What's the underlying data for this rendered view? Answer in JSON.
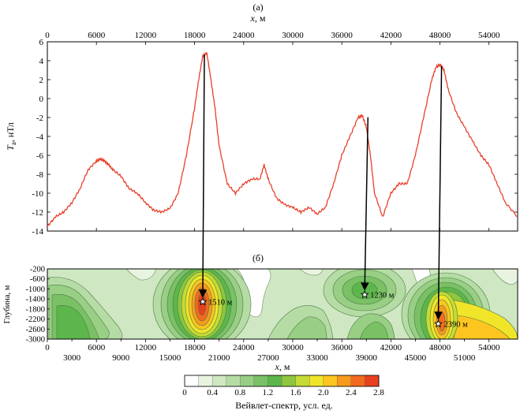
{
  "chart_data": [
    {
      "id": "a",
      "type": "line",
      "panel_label": "(а)",
      "xlabel_var": "x",
      "xlabel_unit": ", м",
      "xlim": [
        0,
        57500
      ],
      "xticks": [
        0,
        6000,
        12000,
        18000,
        24000,
        30000,
        36000,
        42000,
        48000,
        54000
      ],
      "ylabel_var": "T",
      "ylabel_sub": "a",
      "ylabel_unit": ", нТл",
      "ylim": [
        -14,
        6
      ],
      "yticks": [
        6,
        4,
        2,
        0,
        -2,
        -4,
        -6,
        -8,
        -10,
        -12,
        -14
      ],
      "series": [
        {
          "name": "Ta",
          "color": "#e8402a",
          "x": [
            0,
            1000,
            2000,
            3000,
            4000,
            5000,
            6000,
            6500,
            7000,
            7500,
            8000,
            9000,
            10000,
            11000,
            12000,
            13000,
            14000,
            15000,
            16000,
            17000,
            18000,
            18500,
            19000,
            19500,
            20000,
            20500,
            21000,
            22000,
            23000,
            24000,
            25000,
            26000,
            26500,
            27000,
            28000,
            29000,
            30000,
            31000,
            32000,
            33000,
            34000,
            35000,
            36000,
            37000,
            38000,
            38500,
            39000,
            39500,
            40000,
            41000,
            42000,
            43000,
            44000,
            45000,
            46000,
            47000,
            47500,
            48000,
            48500,
            49000,
            50000,
            51000,
            52000,
            53000,
            54000,
            55000,
            56000,
            57500
          ],
          "y": [
            -13.5,
            -12.5,
            -12,
            -11,
            -9.5,
            -7.5,
            -6.6,
            -6.4,
            -6.6,
            -7,
            -7.5,
            -8.2,
            -9.5,
            -10,
            -11,
            -11.8,
            -12,
            -11.6,
            -10,
            -6,
            -1,
            2,
            4.5,
            4.8,
            2,
            -1,
            -5,
            -9,
            -10,
            -9,
            -8.5,
            -8.5,
            -7,
            -8.5,
            -10.5,
            -11.2,
            -11.5,
            -12,
            -11.5,
            -12.2,
            -11.5,
            -9,
            -6,
            -4,
            -2,
            -1.8,
            -3,
            -6,
            -10,
            -12.5,
            -10,
            -9,
            -9,
            -6,
            -2,
            2,
            3.3,
            3.6,
            3,
            1,
            -1.5,
            -3,
            -4.5,
            -6,
            -7,
            -9,
            -11,
            -12.5
          ]
        }
      ],
      "arrows_from": [
        19200,
        39200,
        48200
      ]
    },
    {
      "id": "b",
      "type": "heatmap",
      "panel_label": "(б)",
      "xlabel_var": "x",
      "xlabel_unit": ", м",
      "xlim": [
        0,
        57500
      ],
      "xticks_top": [
        0,
        6000,
        12000,
        18000,
        24000,
        30000,
        36000,
        42000,
        48000,
        54000
      ],
      "xticks_bottom": [
        3000,
        9000,
        15000,
        21000,
        27000,
        33000,
        39000,
        45000,
        51000
      ],
      "ylabel": "Глубина, м",
      "ylim": [
        -3000,
        -200
      ],
      "yticks": [
        -200,
        -600,
        -1000,
        -1400,
        -1800,
        -2200,
        -2600,
        -3000
      ],
      "colorbar": {
        "label": "Вейвлет-спектр, усл. ед.",
        "range": [
          0,
          2.8
        ],
        "ticks": [
          "0",
          "0.4",
          "0.8",
          "1.2",
          "1.6",
          "2.0",
          "2.4",
          "2.8"
        ],
        "colors": [
          "#ffffff",
          "#e8f3e0",
          "#cfe8c3",
          "#b5dca5",
          "#98cf85",
          "#7ac166",
          "#5db64c",
          "#8ec63f",
          "#c6db35",
          "#f1e52a",
          "#fcc520",
          "#f79a1e",
          "#f16a1f",
          "#e8401f"
        ]
      },
      "sources": [
        {
          "x": 19000,
          "depth": -1510,
          "label": "1510 м"
        },
        {
          "x": 38800,
          "depth": -1230,
          "label": "1230 м"
        },
        {
          "x": 47800,
          "depth": -2390,
          "label": "2390 м"
        }
      ]
    }
  ]
}
